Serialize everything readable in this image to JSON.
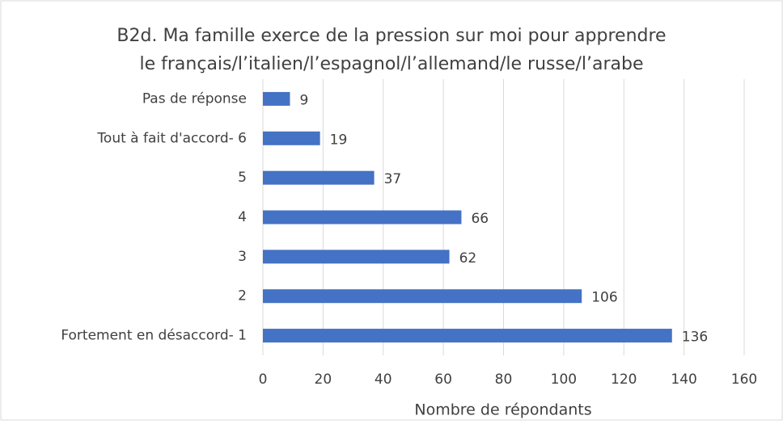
{
  "chart_data": {
    "type": "bar",
    "orientation": "horizontal",
    "title": [
      "B2d. Ma famille exerce de la pression sur moi pour apprendre",
      "le français/l’italien/l’espagnol/l’allemand/le russe/l’arabe"
    ],
    "categories": [
      "Pas de réponse",
      "Tout à fait d'accord- 6",
      "5",
      "4",
      "3",
      "2",
      "Fortement en désaccord- 1"
    ],
    "values": [
      9,
      19,
      37,
      66,
      62,
      106,
      136
    ],
    "color": "#4472c4",
    "xlim": [
      0,
      160
    ],
    "xticks": [
      0,
      20,
      40,
      60,
      80,
      100,
      120,
      140,
      160
    ],
    "xlabel": "Nombre de répondants",
    "grid": true
  }
}
